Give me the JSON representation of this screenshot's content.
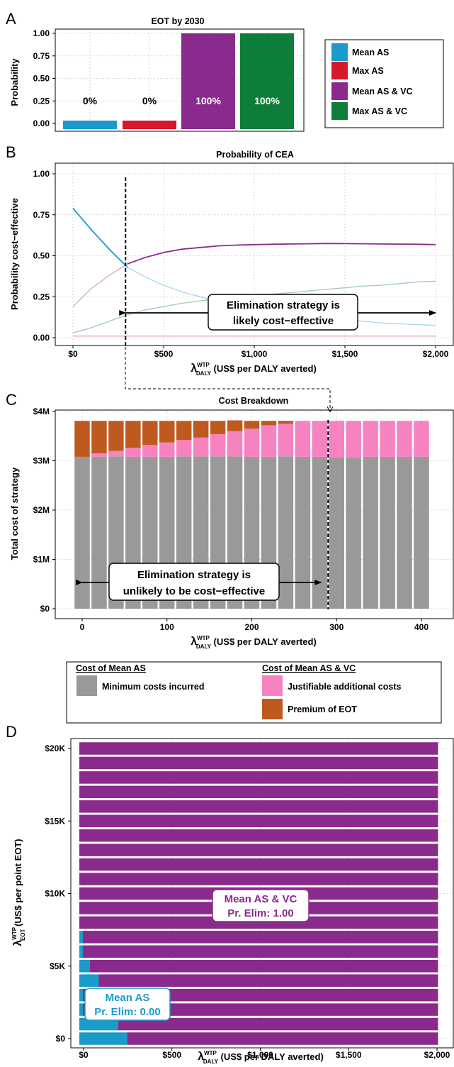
{
  "colors": {
    "mean_as": "#1a9bc9",
    "max_as": "#d7182a",
    "mean_as_vc": "#8a2a8c",
    "max_as_vc": "#0e7d3a",
    "minimum": "#999999",
    "justifiable": "#f782c0",
    "premium": "#bf5a1f"
  },
  "panel_labels": [
    "A",
    "B",
    "C",
    "D"
  ],
  "panelA": {
    "title": "EOT by 2030",
    "ylabel": "Probability",
    "yticks": [
      "1.00",
      "0.75",
      "0.50",
      "0.25",
      "0.00"
    ],
    "legend": [
      "Mean AS",
      "Max AS",
      "Mean AS & VC",
      "Max AS & VC"
    ]
  },
  "panelB": {
    "title": "Probability of CEA",
    "ylabel": "Probability cost−effective",
    "yticks": [
      "1.00",
      "0.75",
      "0.50",
      "0.25",
      "0.00"
    ],
    "xticks": [
      "$0",
      "$500",
      "$1,000",
      "$1,500",
      "$2,000"
    ],
    "xlabel_sym": "λ",
    "xlabel_sup": "WTP",
    "xlabel_sub": "DALY",
    "xlabel_rest": " (US$ per DALY averted)",
    "annotation_line1": "Elimination strategy is",
    "annotation_line2": "likely cost−effective"
  },
  "panelC": {
    "title": "Cost Breakdown",
    "ylabel": "Total cost of strategy",
    "yticks": [
      "$4M",
      "$3M",
      "$2M",
      "$1M",
      "$0"
    ],
    "xticks": [
      "0",
      "100",
      "200",
      "300",
      "400"
    ],
    "xlabel_sym": "λ",
    "xlabel_sup": "WTP",
    "xlabel_sub": "DALY",
    "xlabel_rest": " (US$ per DALY averted)",
    "annotation_line1": "Elimination strategy is",
    "annotation_line2": "unlikely to be cost−effective"
  },
  "legendC": {
    "left_header": "Cost of Mean AS",
    "right_header": "Cost of Mean AS & VC",
    "item_minimum": "Minimum costs incurred",
    "item_justifiable": "Justifiable additional costs",
    "item_premium": "Premium of EOT"
  },
  "panelD": {
    "ylabel_sym": "λ",
    "ylabel_sup": "WTP",
    "ylabel_sub": "EOT",
    "ylabel_rest": " (US$ per point EOT)",
    "yticks": [
      "$20K",
      "$15K",
      "$10K",
      "$5K",
      "$0"
    ],
    "xticks": [
      "$0",
      "$500",
      "$1,000",
      "$1,500",
      "$2,000"
    ],
    "xlabel_sym": "λ",
    "xlabel_sup": "WTP",
    "xlabel_sub": "DALY",
    "xlabel_rest": " (US$ per DALY averted)",
    "label_vc_line1": "Mean AS & VC",
    "label_vc_line2": "Pr. Elim: 1.00",
    "label_as_line1": "Mean AS",
    "label_as_line2": "Pr. Elim: 0.00"
  },
  "chart_data": [
    {
      "type": "bar",
      "title": "EOT by 2030",
      "ylabel": "Probability",
      "ylim": [
        0,
        1
      ],
      "categories": [
        "Mean AS",
        "Max AS",
        "Mean AS & VC",
        "Max AS & VC"
      ],
      "values": [
        0,
        0,
        1,
        1
      ],
      "data_labels": [
        "0%",
        "0%",
        "100%",
        "100%"
      ],
      "legend": "right"
    },
    {
      "type": "line",
      "title": "Probability of CEA",
      "ylabel": "Probability cost−effective",
      "xlim": [
        0,
        2000
      ],
      "ylim": [
        0,
        1
      ],
      "x": [
        0,
        100,
        200,
        300,
        400,
        500,
        600,
        700,
        800,
        900,
        1000,
        1100,
        1200,
        1300,
        1400,
        1500,
        1600,
        1700,
        1800,
        1900,
        2000
      ],
      "series": [
        {
          "name": "Mean AS",
          "values": [
            0.79,
            0.66,
            0.54,
            0.43,
            0.37,
            0.32,
            0.28,
            0.25,
            0.22,
            0.2,
            0.18,
            0.16,
            0.15,
            0.13,
            0.12,
            0.11,
            0.1,
            0.09,
            0.085,
            0.08,
            0.075
          ]
        },
        {
          "name": "Max AS",
          "values": [
            0.01,
            0.01,
            0.01,
            0.01,
            0.01,
            0.01,
            0.01,
            0.01,
            0.01,
            0.01,
            0.01,
            0.01,
            0.01,
            0.01,
            0.01,
            0.01,
            0.01,
            0.01,
            0.01,
            0.01,
            0.01
          ]
        },
        {
          "name": "Mean AS & VC",
          "values": [
            0.19,
            0.3,
            0.38,
            0.45,
            0.49,
            0.52,
            0.54,
            0.55,
            0.56,
            0.565,
            0.568,
            0.57,
            0.572,
            0.573,
            0.575,
            0.574,
            0.573,
            0.572,
            0.571,
            0.57,
            0.568
          ]
        },
        {
          "name": "Max AS & VC",
          "values": [
            0.03,
            0.06,
            0.1,
            0.14,
            0.17,
            0.19,
            0.21,
            0.225,
            0.235,
            0.245,
            0.255,
            0.265,
            0.275,
            0.285,
            0.295,
            0.305,
            0.315,
            0.32,
            0.33,
            0.34,
            0.345
          ]
        }
      ],
      "vline_x": 290
    },
    {
      "type": "bar",
      "stacked": true,
      "title": "Cost Breakdown",
      "ylabel": "Total cost of strategy",
      "ylim": [
        0,
        4000000
      ],
      "x": [
        0,
        20,
        40,
        60,
        80,
        100,
        120,
        140,
        160,
        180,
        200,
        220,
        240,
        260,
        280,
        300,
        320,
        340,
        360,
        380,
        400
      ],
      "series": [
        {
          "name": "Minimum costs incurred",
          "values": [
            3080000,
            3080000,
            3090000,
            3080000,
            3080000,
            3080000,
            3090000,
            3090000,
            3090000,
            3090000,
            3080000,
            3080000,
            3090000,
            3080000,
            3080000,
            3070000,
            3070000,
            3080000,
            3080000,
            3080000,
            3080000
          ]
        },
        {
          "name": "Justifiable additional costs",
          "values": [
            0,
            70000,
            110000,
            180000,
            240000,
            290000,
            330000,
            380000,
            450000,
            510000,
            570000,
            640000,
            660000,
            730000,
            730000,
            740000,
            740000,
            730000,
            730000,
            730000,
            730000
          ]
        },
        {
          "name": "Premium of EOT",
          "values": [
            730000,
            660000,
            610000,
            550000,
            490000,
            440000,
            390000,
            340000,
            270000,
            220000,
            160000,
            90000,
            60000,
            0,
            0,
            0,
            0,
            0,
            0,
            0,
            0
          ]
        }
      ],
      "vline_x": 290
    },
    {
      "type": "bar",
      "orientation": "horizontal",
      "stacked": true,
      "xlim": [
        0,
        2000
      ],
      "y": [
        0,
        1000,
        2000,
        3000,
        4000,
        5000,
        6000,
        7000,
        8000,
        9000,
        10000,
        11000,
        12000,
        13000,
        14000,
        15000,
        16000,
        17000,
        18000,
        19000,
        20000
      ],
      "series": [
        {
          "name": "Mean AS",
          "values": [
            270,
            220,
            20,
            20,
            110,
            60,
            20,
            20,
            0,
            0,
            0,
            0,
            0,
            0,
            0,
            0,
            0,
            0,
            0,
            0,
            0
          ]
        },
        {
          "name": "Mean AS & VC",
          "values": [
            1760,
            1810,
            2010,
            2010,
            1920,
            1970,
            2010,
            2010,
            2030,
            2030,
            2030,
            2030,
            2030,
            2030,
            2030,
            2030,
            2030,
            2030,
            2030,
            2030,
            2030
          ]
        }
      ]
    }
  ]
}
